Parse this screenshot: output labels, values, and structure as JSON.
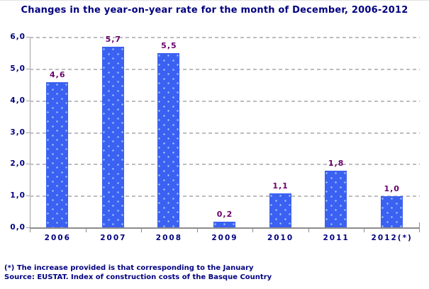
{
  "title": "Changes in the year-on-year rate for the month of December, 2006-2012",
  "footnotes": [
    "(*) The increase provided is that corresponding to the January",
    "Source: EUSTAT. Index of construction costs of the Basque Country"
  ],
  "chart_data": {
    "type": "bar",
    "title": "Changes in the year-on-year rate for the month of December, 2006-2012",
    "categories": [
      "2006",
      "2007",
      "2008",
      "2009",
      "2010",
      "2011",
      "2012(*)"
    ],
    "values": [
      4.6,
      5.7,
      5.5,
      0.2,
      1.1,
      1.8,
      1.0
    ],
    "value_labels": [
      "4,6",
      "5,7",
      "5,5",
      "0,2",
      "1,1",
      "1,8",
      "1,0"
    ],
    "xlabel": "",
    "ylabel": "",
    "ylim": [
      0,
      6
    ],
    "ytick_step": 1,
    "ytick_labels": [
      "0,0",
      "1,0",
      "2,0",
      "3,0",
      "4,0",
      "5,0",
      "6,0"
    ],
    "grid": "horizontal-dashed",
    "legend": "none",
    "colors": {
      "bar": "#3b61f2",
      "bar_dots": "#a9c9f8",
      "value_label": "#6b006b",
      "axis_text": "#000080",
      "title_text": "#000080",
      "gridline": "#bdbdbd",
      "axis_line": "#8c8c8c"
    }
  }
}
